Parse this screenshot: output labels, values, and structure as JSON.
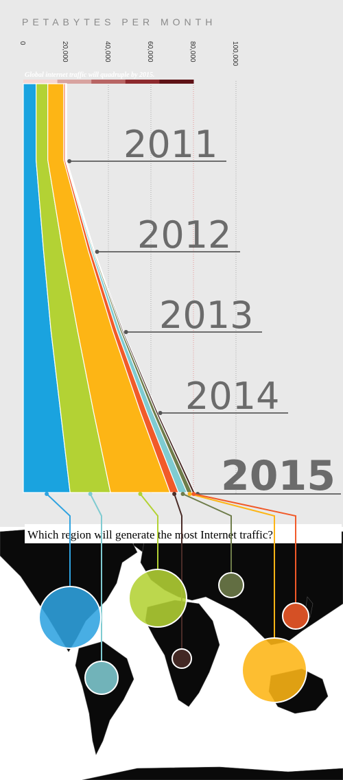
{
  "chart_data": {
    "type": "area",
    "title": "PETABYTES PER MONTH",
    "subtitle": "Global internet traffic will quadruple by 2015.",
    "question": "Which region will generate the most Internet traffic?",
    "x_ticks": [
      "0",
      "20,000",
      "40,000",
      "60,000",
      "80,000",
      "100,000"
    ],
    "xlim": [
      0,
      100000
    ],
    "years": [
      "2011",
      "2012",
      "2013",
      "2014",
      "2015"
    ],
    "series": [
      {
        "color": "#1aa3df",
        "values": [
          6000,
          9500,
          13000,
          17500,
          22000
        ]
      },
      {
        "color": "#b3d234",
        "values": [
          5500,
          9000,
          12500,
          15500,
          19000
        ]
      },
      {
        "color": "#fdb515",
        "values": [
          7500,
          12000,
          16500,
          22000,
          28000
        ]
      },
      {
        "color": "#f15a29",
        "values": [
          700,
          1300,
          2000,
          3000,
          4000
        ]
      },
      {
        "color": "#7fcbd1",
        "values": [
          300,
          800,
          1500,
          2700,
          4000
        ]
      },
      {
        "color": "#6e7c4a",
        "values": [
          200,
          500,
          900,
          1500,
          2500
        ]
      },
      {
        "color": "#4a2c28",
        "values": [
          150,
          300,
          600,
          900,
          1200
        ]
      }
    ],
    "legend_colors": [
      "#f6d7d3",
      "#d8a3a0",
      "#b86564",
      "#8e2a2e",
      "#5e1216"
    ]
  },
  "map": {
    "bubbles": [
      {
        "name": "north-america",
        "color": "#2fa3e0"
      },
      {
        "name": "latin-america",
        "color": "#7fcbd1"
      },
      {
        "name": "western-europe",
        "color": "#b3d234"
      },
      {
        "name": "middle-east-africa",
        "color": "#4a2c28"
      },
      {
        "name": "central-eastern-europe",
        "color": "#6e7c4a"
      },
      {
        "name": "asia-pacific",
        "color": "#fdb515"
      },
      {
        "name": "japan",
        "color": "#f15a29"
      }
    ]
  }
}
